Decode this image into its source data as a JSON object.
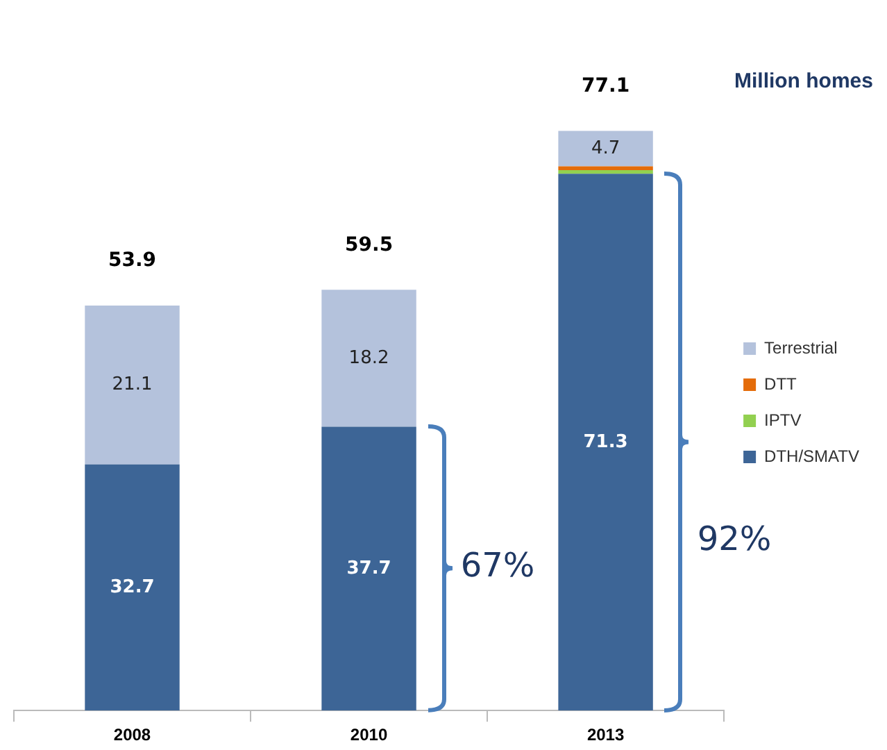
{
  "chart_data": {
    "type": "bar",
    "title": "Million homes",
    "stacked": true,
    "categories": [
      "2008",
      "2010",
      "2013"
    ],
    "series": [
      {
        "name": "DTH/SMATV",
        "color": "#3d6596",
        "values": [
          32.7,
          37.7,
          71.3
        ],
        "value_labels": [
          "32.7",
          "37.7",
          "71.3"
        ]
      },
      {
        "name": "IPTV",
        "color": "#92d050",
        "values": [
          0,
          0,
          0.5
        ],
        "value_labels": [
          null,
          null,
          null
        ]
      },
      {
        "name": "DTT",
        "color": "#e46c0a",
        "values": [
          0,
          0,
          0.5
        ],
        "value_labels": [
          null,
          null,
          null
        ]
      },
      {
        "name": "Terrestrial",
        "color": "#b4c2dc",
        "values": [
          21.1,
          18.2,
          4.7
        ],
        "value_labels": [
          "21.1",
          "18.2",
          "4.7"
        ]
      }
    ],
    "annotations": [
      "53.9",
      "59.5",
      "77.1",
      "67%",
      "92%"
    ],
    "legend": "right",
    "grid": false
  }
}
